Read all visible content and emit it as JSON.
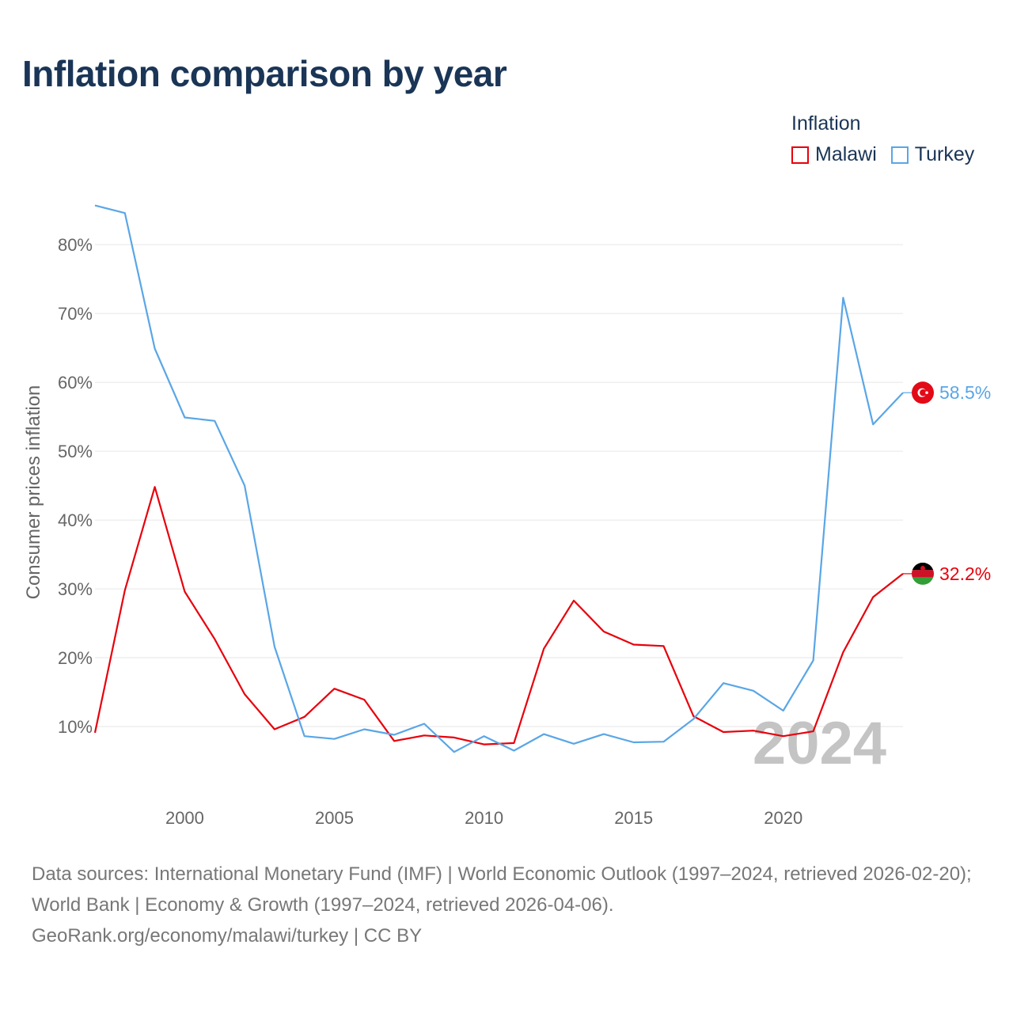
{
  "title": "Inflation comparison by year",
  "legend": {
    "title": "Inflation",
    "items": [
      {
        "name": "Malawi",
        "color": "#e8000b"
      },
      {
        "name": "Turkey",
        "color": "#5aa6e6"
      }
    ]
  },
  "footer": {
    "sources": "Data sources: International Monetary Fund (IMF) | World Economic Outlook (1997–2024, retrieved 2026-02-20); World Bank | Economy & Growth (1997–2024, retrieved 2026-04-06).",
    "credit": "GeoRank.org/economy/malawi/turkey | CC BY"
  },
  "chart_data": {
    "type": "line",
    "title": "Inflation comparison by year",
    "xlabel": "",
    "ylabel": "Consumer prices inflation",
    "x": [
      1997,
      1998,
      1999,
      2000,
      2001,
      2002,
      2003,
      2004,
      2005,
      2006,
      2007,
      2008,
      2009,
      2010,
      2011,
      2012,
      2013,
      2014,
      2015,
      2016,
      2017,
      2018,
      2019,
      2020,
      2021,
      2022,
      2023,
      2024
    ],
    "xlim": [
      1997,
      2024
    ],
    "ylim": [
      0,
      86
    ],
    "xticks": [
      2000,
      2005,
      2010,
      2015,
      2020
    ],
    "yticks": [
      10,
      20,
      30,
      40,
      50,
      60,
      70,
      80
    ],
    "ytick_labels": [
      "10%",
      "20%",
      "30%",
      "40%",
      "50%",
      "60%",
      "70%",
      "80%"
    ],
    "grid": true,
    "watermark": "2024",
    "series": [
      {
        "name": "Malawi",
        "color": "#e8000b",
        "end_label": "32.2%",
        "values": [
          9.1,
          29.8,
          44.8,
          29.6,
          22.7,
          14.7,
          9.6,
          11.4,
          15.5,
          13.9,
          7.9,
          8.7,
          8.4,
          7.4,
          7.6,
          21.3,
          28.3,
          23.8,
          21.9,
          21.7,
          11.5,
          9.2,
          9.4,
          8.6,
          9.3,
          20.8,
          28.8,
          32.2
        ]
      },
      {
        "name": "Turkey",
        "color": "#5aa6e6",
        "end_label": "58.5%",
        "values": [
          85.7,
          84.6,
          64.9,
          54.9,
          54.4,
          45.0,
          21.6,
          8.6,
          8.2,
          9.6,
          8.8,
          10.4,
          6.3,
          8.6,
          6.5,
          8.9,
          7.5,
          8.9,
          7.7,
          7.8,
          11.1,
          16.3,
          15.2,
          12.3,
          19.6,
          72.3,
          53.9,
          58.5
        ]
      }
    ]
  }
}
